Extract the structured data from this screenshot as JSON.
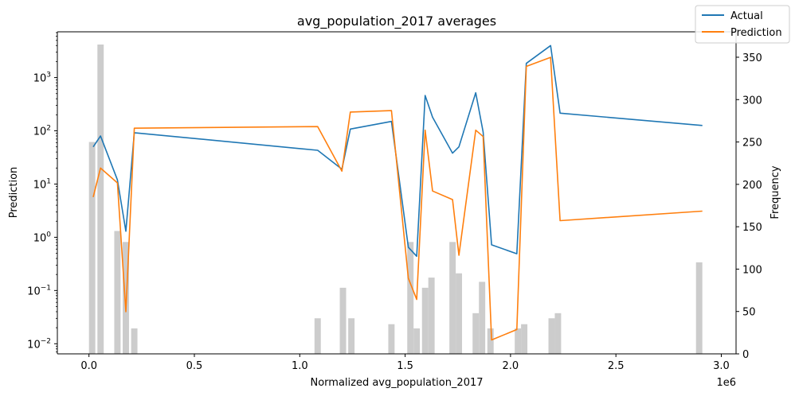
{
  "chart_data": {
    "type": "line",
    "title": "avg_population_2017 averages",
    "xlabel": "Normalized avg_population_2017",
    "x_offset_label": "1e6",
    "ylabel_left": "Prediction",
    "ylabel_right": "Frequency",
    "xlim": [
      -0.15,
      3.07
    ],
    "ylim_left_log10": [
      -2.19,
      3.86
    ],
    "ylim_right": [
      0,
      380
    ],
    "x_ticks": [
      0.0,
      0.5,
      1.0,
      1.5,
      2.0,
      2.5,
      3.0
    ],
    "x_tick_labels": [
      "0.0",
      "0.5",
      "1.0",
      "1.5",
      "2.0",
      "2.5",
      "3.0"
    ],
    "y_left_ticks_exp": [
      -2,
      -1,
      0,
      1,
      2,
      3
    ],
    "y_left_tick_labels": [
      {
        "base": "10",
        "exp": "−2"
      },
      {
        "base": "10",
        "exp": "−1"
      },
      {
        "base": "10",
        "exp": "0"
      },
      {
        "base": "10",
        "exp": "1"
      },
      {
        "base": "10",
        "exp": "2"
      },
      {
        "base": "10",
        "exp": "3"
      }
    ],
    "y_right_ticks": [
      0,
      50,
      100,
      150,
      200,
      250,
      300,
      350
    ],
    "y_right_tick_labels": [
      "0",
      "50",
      "100",
      "150",
      "200",
      "250",
      "300",
      "350"
    ],
    "series": [
      {
        "name": "Actual",
        "color": "#1f77b4",
        "x": [
          0.02,
          0.055,
          0.135,
          0.175,
          0.215,
          1.085,
          1.2,
          1.24,
          1.435,
          1.515,
          1.555,
          1.595,
          1.63,
          1.725,
          1.755,
          1.835,
          1.87,
          1.91,
          2.03,
          2.075,
          2.19,
          2.235,
          2.91
        ],
        "y": [
          50,
          80,
          12,
          1.3,
          92,
          43,
          19,
          108,
          150,
          0.65,
          0.44,
          460,
          180,
          38,
          50,
          520,
          95,
          0.72,
          0.49,
          1850,
          4000,
          215,
          126
        ]
      },
      {
        "name": "Prediction",
        "color": "#ff7f0e",
        "x": [
          0.02,
          0.055,
          0.135,
          0.175,
          0.215,
          1.085,
          1.2,
          1.24,
          1.435,
          1.515,
          1.555,
          1.595,
          1.63,
          1.725,
          1.755,
          1.835,
          1.87,
          1.91,
          2.03,
          2.075,
          2.19,
          2.235,
          2.91
        ],
        "y": [
          5.7,
          20,
          10.5,
          0.04,
          112,
          120,
          17.5,
          225,
          240,
          0.17,
          0.068,
          103,
          7.4,
          5.1,
          0.46,
          103,
          78,
          0.0118,
          0.0185,
          1620,
          2400,
          2.05,
          3.1
        ]
      }
    ],
    "histogram": {
      "name": "Frequency",
      "color": "#cccccc",
      "bin_width": 0.03,
      "bins": [
        {
          "x": 0.0,
          "count": 250
        },
        {
          "x": 0.04,
          "count": 365
        },
        {
          "x": 0.12,
          "count": 145
        },
        {
          "x": 0.16,
          "count": 132
        },
        {
          "x": 0.2,
          "count": 30
        },
        {
          "x": 1.07,
          "count": 42
        },
        {
          "x": 1.19,
          "count": 78
        },
        {
          "x": 1.23,
          "count": 42
        },
        {
          "x": 1.42,
          "count": 35
        },
        {
          "x": 1.51,
          "count": 132
        },
        {
          "x": 1.54,
          "count": 30
        },
        {
          "x": 1.58,
          "count": 78
        },
        {
          "x": 1.61,
          "count": 90
        },
        {
          "x": 1.71,
          "count": 132
        },
        {
          "x": 1.74,
          "count": 95
        },
        {
          "x": 1.82,
          "count": 48
        },
        {
          "x": 1.85,
          "count": 85
        },
        {
          "x": 1.89,
          "count": 30
        },
        {
          "x": 2.02,
          "count": 30
        },
        {
          "x": 2.05,
          "count": 35
        },
        {
          "x": 2.18,
          "count": 42
        },
        {
          "x": 2.21,
          "count": 48
        },
        {
          "x": 2.88,
          "count": 108
        }
      ]
    },
    "legend": {
      "position": "top-right",
      "entries": [
        "Actual",
        "Prediction"
      ]
    }
  }
}
